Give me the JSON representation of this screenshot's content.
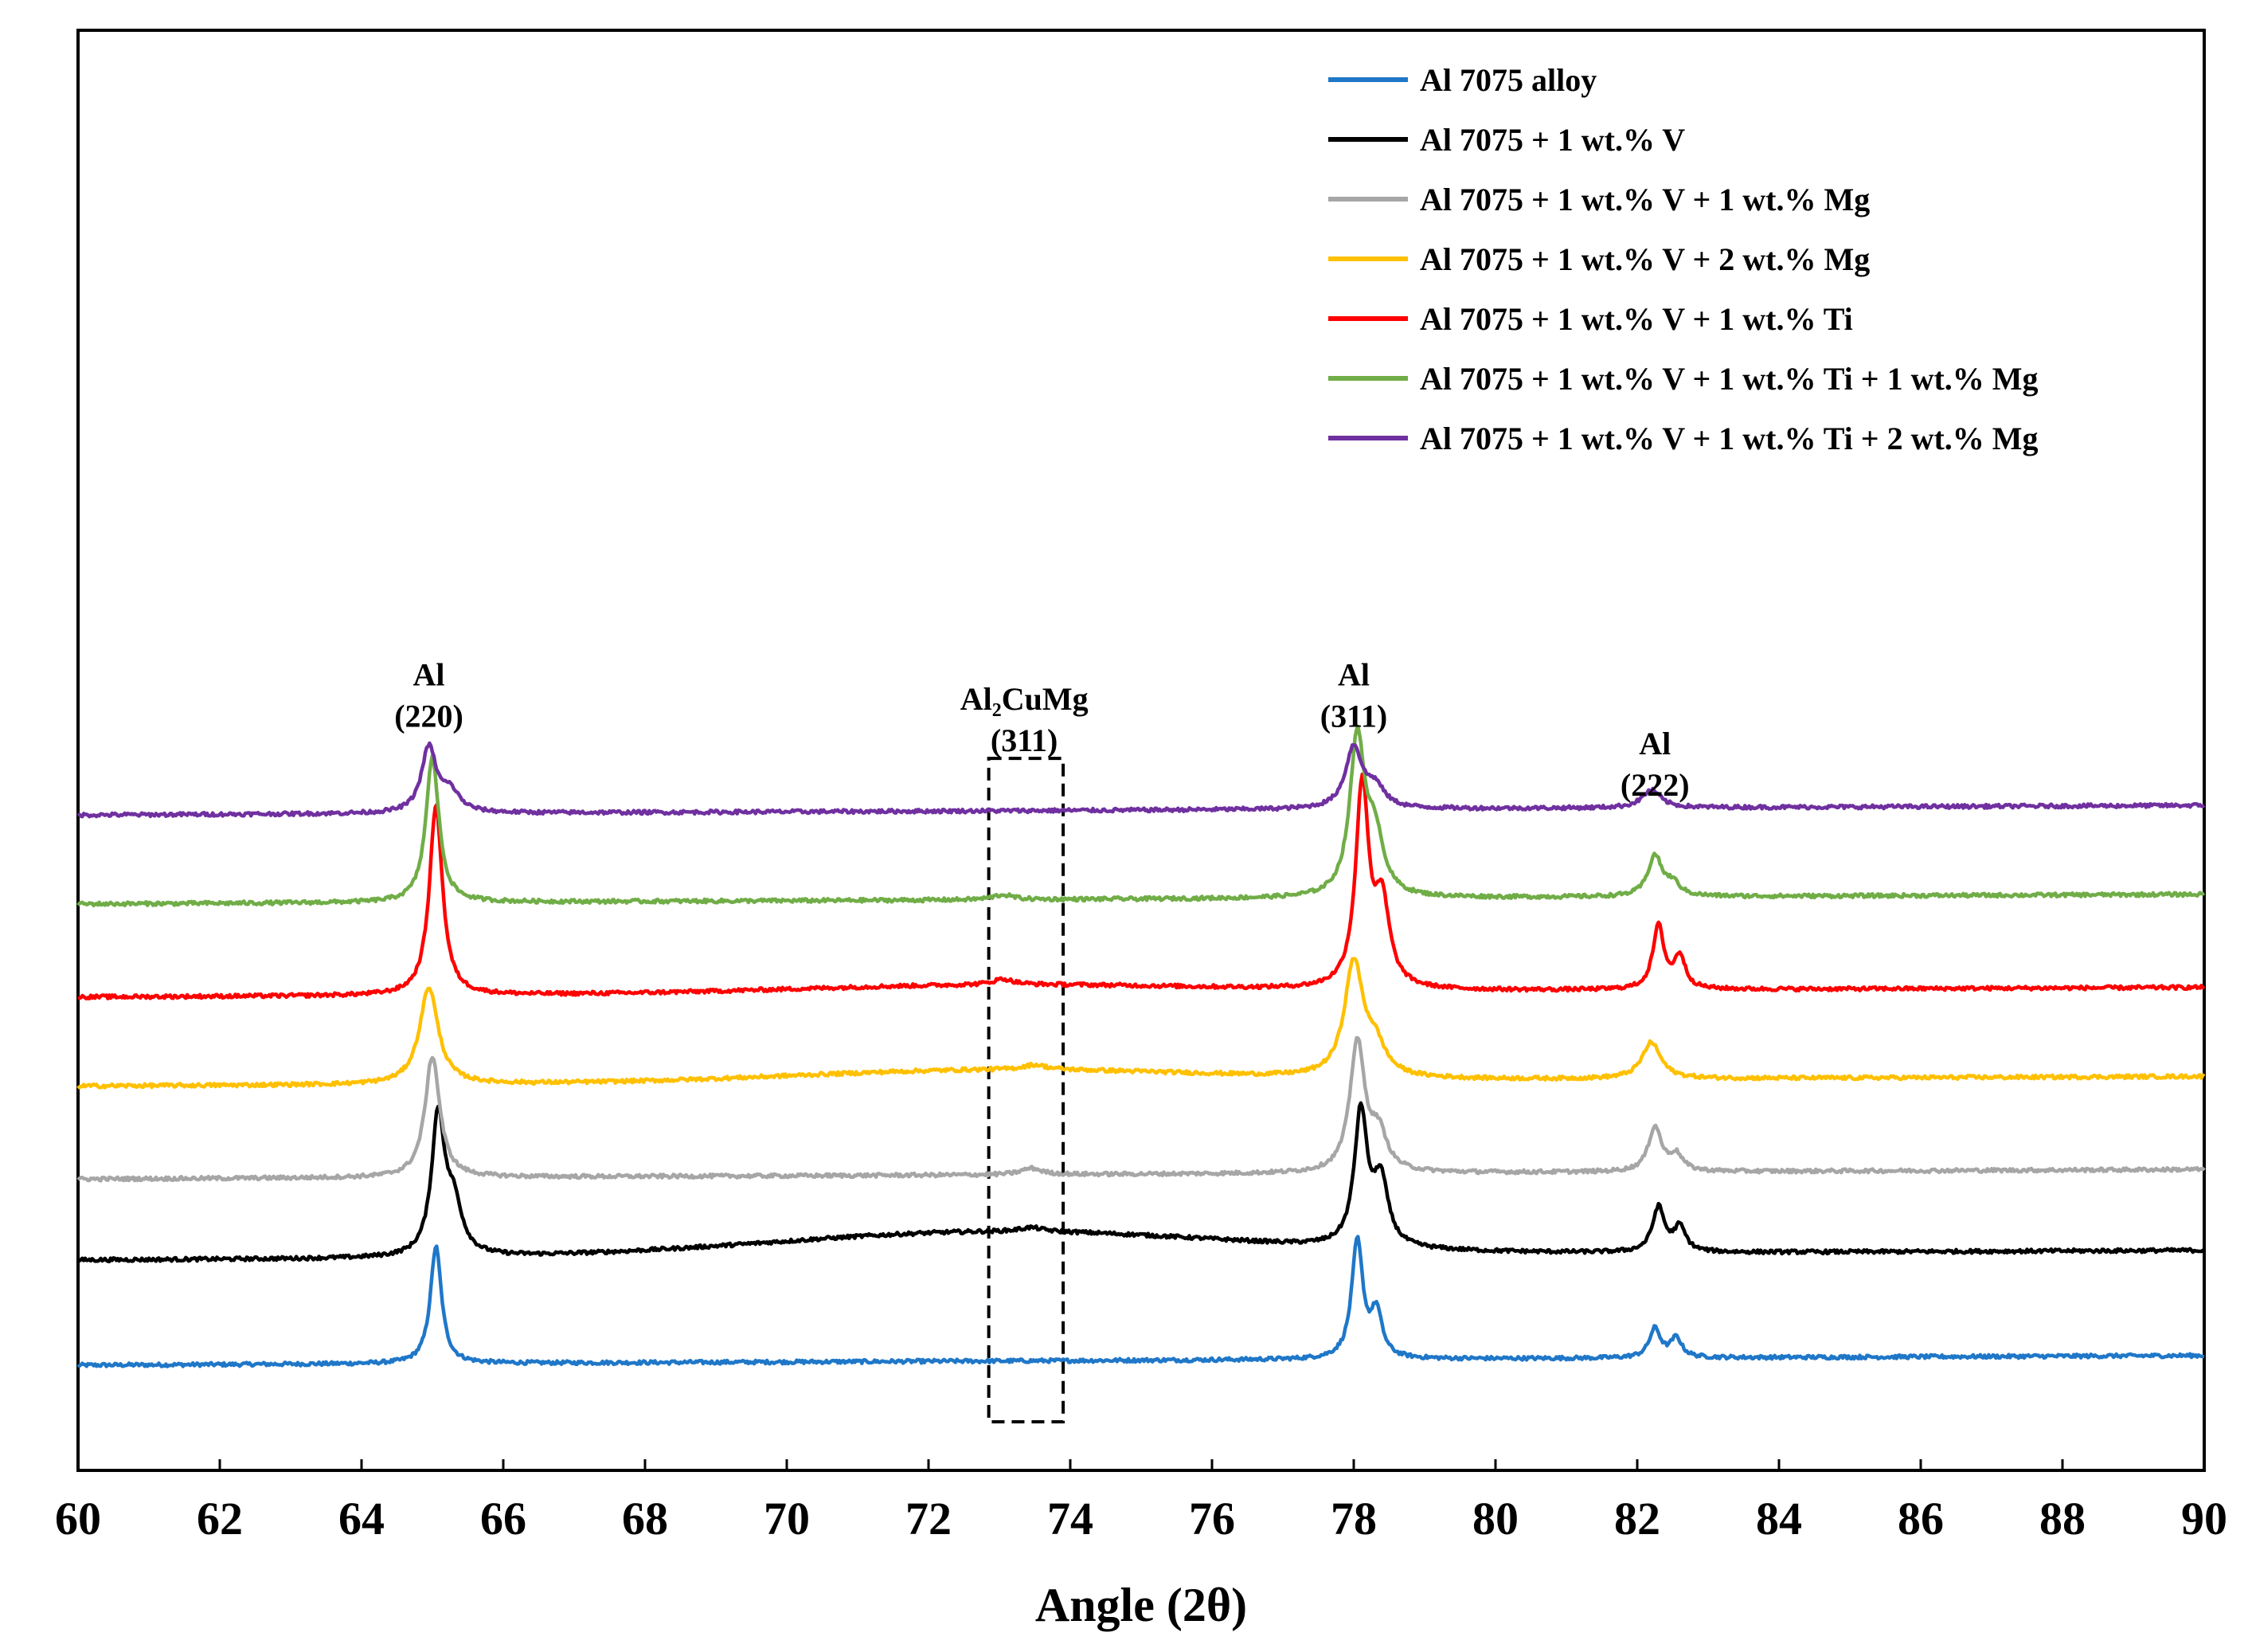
{
  "chart_data": {
    "type": "line",
    "xlabel": "Angle (2θ)",
    "ylabel": "",
    "xlim": [
      60,
      90
    ],
    "x_ticks": [
      60,
      62,
      64,
      66,
      68,
      70,
      72,
      74,
      76,
      78,
      80,
      82,
      84,
      86,
      88,
      90
    ],
    "x_tick_labels": [
      "60",
      "62",
      "64",
      "66",
      "68",
      "70",
      "72",
      "74",
      "76",
      "78",
      "80",
      "82",
      "84",
      "86",
      "88",
      "90"
    ],
    "y_ticks_shown": false,
    "grid": false,
    "legend_position": "top-right",
    "series": [
      {
        "name": "Al 7075 alloy",
        "color": "#1f77c8",
        "baseline": 1.0,
        "peaks": [
          {
            "x": 65.05,
            "height": 1.45,
            "width": 0.12
          },
          {
            "x": 78.05,
            "height": 1.45,
            "width": 0.12
          },
          {
            "x": 78.32,
            "height": 0.55,
            "width": 0.12
          },
          {
            "x": 82.25,
            "height": 0.36,
            "width": 0.12
          },
          {
            "x": 82.55,
            "height": 0.24,
            "width": 0.12
          }
        ]
      },
      {
        "name": "Al 7075 + 1 wt.% V",
        "color": "#000000",
        "baseline": 2.3,
        "hump": {
          "x": 73.0,
          "height": 0.3,
          "width": 4.5
        },
        "peaks": [
          {
            "x": 65.08,
            "height": 1.7,
            "width": 0.14
          },
          {
            "x": 65.3,
            "height": 0.6,
            "width": 0.18
          },
          {
            "x": 78.1,
            "height": 1.65,
            "width": 0.14
          },
          {
            "x": 78.38,
            "height": 0.8,
            "width": 0.16
          },
          {
            "x": 82.3,
            "height": 0.55,
            "width": 0.13
          },
          {
            "x": 82.6,
            "height": 0.3,
            "width": 0.13
          },
          {
            "x": 73.45,
            "height": 0.05,
            "width": 0.25
          }
        ]
      },
      {
        "name": "Al 7075 + 1 wt.% V + 1 wt.% Mg",
        "color": "#a6a6a6",
        "baseline": 3.3,
        "peaks": [
          {
            "x": 65.0,
            "height": 1.5,
            "width": 0.16
          },
          {
            "x": 78.05,
            "height": 1.6,
            "width": 0.16
          },
          {
            "x": 78.35,
            "height": 0.45,
            "width": 0.18
          },
          {
            "x": 82.25,
            "height": 0.55,
            "width": 0.14
          },
          {
            "x": 82.55,
            "height": 0.2,
            "width": 0.14
          },
          {
            "x": 73.45,
            "height": 0.08,
            "width": 0.22
          }
        ]
      },
      {
        "name": "Al 7075 + 1 wt.% V + 2 wt.% Mg",
        "color": "#ffc000",
        "baseline": 4.45,
        "hump": {
          "x": 73.0,
          "height": 0.15,
          "width": 4.0
        },
        "peaks": [
          {
            "x": 64.95,
            "height": 1.2,
            "width": 0.2
          },
          {
            "x": 78.0,
            "height": 1.4,
            "width": 0.2
          },
          {
            "x": 78.3,
            "height": 0.35,
            "width": 0.22
          },
          {
            "x": 82.2,
            "height": 0.45,
            "width": 0.2
          },
          {
            "x": 73.5,
            "height": 0.06,
            "width": 0.25
          }
        ]
      },
      {
        "name": "Al 7075 + 1 wt.% V + 1 wt.% Ti",
        "color": "#ff0000",
        "baseline": 5.55,
        "hump": {
          "x": 73.0,
          "height": 0.1,
          "width": 4.0
        },
        "peaks": [
          {
            "x": 65.05,
            "height": 2.35,
            "width": 0.14
          },
          {
            "x": 78.12,
            "height": 2.5,
            "width": 0.14
          },
          {
            "x": 78.4,
            "height": 1.0,
            "width": 0.16
          },
          {
            "x": 82.3,
            "height": 0.78,
            "width": 0.12
          },
          {
            "x": 82.6,
            "height": 0.4,
            "width": 0.12
          },
          {
            "x": 73.05,
            "height": 0.07,
            "width": 0.22
          }
        ]
      },
      {
        "name": "Al 7075 + 1 wt.% V + 1 wt.% Ti + 1 wt.% Mg",
        "color": "#70ad47",
        "baseline": 6.7,
        "peaks": [
          {
            "x": 65.0,
            "height": 1.8,
            "width": 0.14
          },
          {
            "x": 78.05,
            "height": 1.95,
            "width": 0.16
          },
          {
            "x": 78.3,
            "height": 0.7,
            "width": 0.18
          },
          {
            "x": 82.25,
            "height": 0.5,
            "width": 0.15
          },
          {
            "x": 82.5,
            "height": 0.15,
            "width": 0.15
          },
          {
            "x": 73.05,
            "height": 0.06,
            "width": 0.22
          }
        ]
      },
      {
        "name": "Al 7075 + 1 wt.% V + 1 wt.% Ti + 2 wt.% Mg",
        "color": "#7030a0",
        "baseline": 7.8,
        "peaks": [
          {
            "x": 64.95,
            "height": 0.8,
            "width": 0.16
          },
          {
            "x": 65.25,
            "height": 0.25,
            "width": 0.2
          },
          {
            "x": 78.0,
            "height": 0.75,
            "width": 0.18
          },
          {
            "x": 78.3,
            "height": 0.25,
            "width": 0.2
          },
          {
            "x": 82.2,
            "height": 0.22,
            "width": 0.2
          }
        ]
      }
    ],
    "annotations": [
      {
        "lines": [
          "Al",
          "(220)"
        ],
        "x": 64.95,
        "y": 9.4
      },
      {
        "lines": [
          "Al",
          "(311)"
        ],
        "x": 78.0,
        "y": 9.4
      },
      {
        "lines": [
          "Al",
          "(222)"
        ],
        "x": 82.25,
        "y": 8.55
      },
      {
        "lines": [
          "Al₂CuMg",
          "(311)"
        ],
        "x": 73.35,
        "y": 9.1
      }
    ],
    "highlight_box": {
      "x_range": [
        72.85,
        73.9
      ],
      "y_range": [
        0.3,
        8.5
      ]
    },
    "ylim": [
      -0.3,
      17.5
    ]
  }
}
